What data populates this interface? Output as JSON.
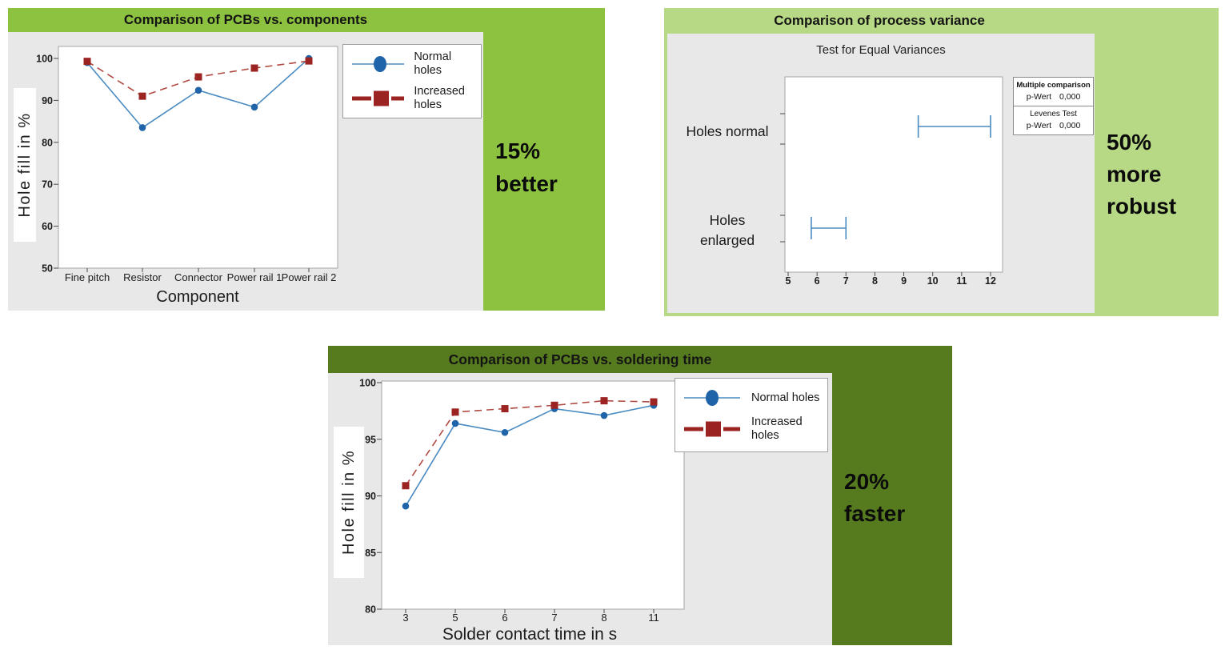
{
  "colors": {
    "panel1_green": "#8cc23f",
    "panel2_green": "#b7d884",
    "panel3_green": "#567b1f",
    "chart_bg": "#e8e8e8",
    "blue_marker": "#1f63a8",
    "blue_line": "#4a8bc2",
    "red_marker": "#9b2423",
    "red_line": "#b04a42"
  },
  "chart_data": [
    {
      "type": "line",
      "title": "Comparison of PCBs vs. components",
      "categories": [
        "Fine pitch",
        "Resistor",
        "Connector",
        "Power rail 1",
        "Power rail 2"
      ],
      "series": [
        {
          "name": "Normal holes",
          "values": [
            99.0,
            83.5,
            92.4,
            88.4,
            100.0
          ],
          "marker": "circle",
          "dash": false
        },
        {
          "name": "Increased holes",
          "values": [
            99.3,
            91.0,
            95.6,
            97.7,
            99.4
          ],
          "marker": "square",
          "dash": true
        }
      ],
      "xlabel": "Component",
      "ylabel": "Hole fill in %",
      "ylim": [
        50,
        100
      ],
      "yticks": [
        50,
        60,
        70,
        80,
        90,
        100
      ],
      "legend_position": "right-top",
      "grid": false,
      "annotation": "15% better",
      "annotation_lines": [
        "15%",
        "better"
      ]
    },
    {
      "type": "interval",
      "title": "Comparison of process variance",
      "subtitle": "Test for Equal Variances",
      "categories": [
        "Holes normal",
        "Holes enlarged"
      ],
      "intervals": [
        [
          9.5,
          12.0
        ],
        [
          5.8,
          7.0
        ]
      ],
      "xlim": [
        5,
        12
      ],
      "xticks": [
        5,
        6,
        7,
        8,
        9,
        10,
        11,
        12
      ],
      "grid": false,
      "stats": {
        "cells": [
          {
            "header": "Multiple comparison",
            "label": "p-Wert",
            "value": "0,000"
          },
          {
            "header": "Levenes Test",
            "label": "p-Wert",
            "value": "0,000"
          }
        ]
      },
      "annotation": "50% more robust",
      "annotation_lines": [
        "50%",
        "more",
        "robust"
      ]
    },
    {
      "type": "line",
      "title": "Comparison of PCBs vs. soldering time",
      "categories": [
        "3",
        "5",
        "6",
        "7",
        "8",
        "11"
      ],
      "series": [
        {
          "name": "Normal holes",
          "values": [
            89.1,
            96.4,
            95.6,
            97.7,
            97.1,
            98.0
          ],
          "marker": "circle",
          "dash": false
        },
        {
          "name": "Increased holes",
          "values": [
            90.9,
            97.4,
            97.7,
            98.0,
            98.4,
            98.3
          ],
          "marker": "square",
          "dash": true
        }
      ],
      "xlabel": "Solder contact time in s",
      "ylabel": "Hole fill in %",
      "ylim": [
        80,
        100
      ],
      "yticks": [
        80,
        85,
        90,
        95,
        100
      ],
      "legend_position": "right-top",
      "grid": false,
      "annotation": "20% faster",
      "annotation_lines": [
        "20%",
        "faster"
      ]
    }
  ]
}
